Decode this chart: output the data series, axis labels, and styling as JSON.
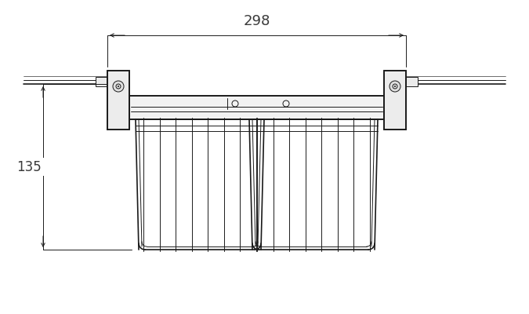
{
  "bg_color": "#ffffff",
  "line_color": "#1a1a1a",
  "fig_width": 6.75,
  "fig_height": 4.0,
  "dpi": 100,
  "label_135": "135",
  "label_298": "298",
  "xlim": [
    0,
    675
  ],
  "ylim": [
    0,
    400
  ]
}
